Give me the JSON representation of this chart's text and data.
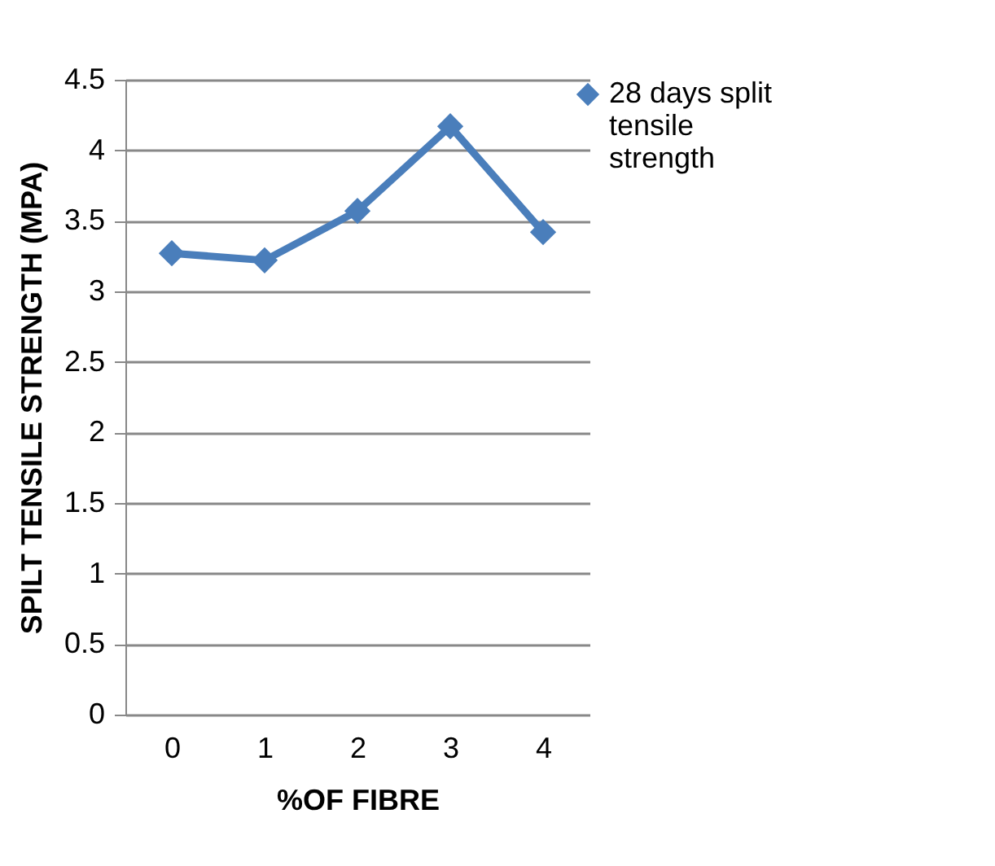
{
  "chart_data": {
    "type": "line",
    "xlabel": "%OF FIBRE",
    "ylabel": "SPILT TENSILE  STRENGTH (MPA)",
    "categories": [
      "0",
      "1",
      "2",
      "3",
      "4"
    ],
    "series": [
      {
        "name": "28 days split tensile strength",
        "color": "#4a7ebb",
        "values": [
          3.27,
          3.22,
          3.57,
          4.17,
          3.42
        ]
      }
    ],
    "ylim": [
      0,
      4.5
    ],
    "yticks": [
      0,
      0.5,
      1,
      1.5,
      2,
      2.5,
      3,
      3.5,
      4,
      4.5
    ],
    "grid": "y",
    "legend": "right",
    "marker": "diamond",
    "line_style": "solid"
  }
}
